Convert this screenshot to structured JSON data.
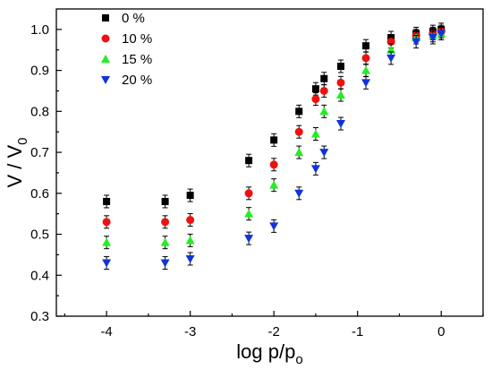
{
  "chart_data": {
    "type": "scatter",
    "xlabel_main": "log p/p",
    "xlabel_sub": "o",
    "ylabel_main": "V / V",
    "ylabel_sub": "0",
    "xlim": [
      -4.6,
      0.5
    ],
    "ylim": [
      0.3,
      1.05
    ],
    "x_ticks": [
      -4,
      -3,
      -2,
      -1,
      0
    ],
    "x_tick_labels": [
      "-4",
      "-3",
      "-2",
      "-1",
      "0"
    ],
    "y_ticks": [
      0.3,
      0.4,
      0.5,
      0.6,
      0.7,
      0.8,
      0.9,
      1.0
    ],
    "y_tick_labels": [
      "0.3",
      "0.4",
      "0.5",
      "0.6",
      "0.7",
      "0.8",
      "0.9",
      "1.0"
    ],
    "legend_position": "top-left",
    "series": [
      {
        "name": "0 %",
        "marker": "square",
        "color": "#000000",
        "x": [
          -4.0,
          -3.3,
          -3.0,
          -2.3,
          -2.0,
          -1.7,
          -1.5,
          -1.4,
          -1.2,
          -0.9,
          -0.6,
          -0.3,
          -0.1,
          0.0
        ],
        "y": [
          0.58,
          0.58,
          0.595,
          0.68,
          0.73,
          0.8,
          0.855,
          0.88,
          0.91,
          0.96,
          0.98,
          0.99,
          0.995,
          1.0
        ]
      },
      {
        "name": "10 %",
        "marker": "circle",
        "color": "#ee1111",
        "x": [
          -4.0,
          -3.3,
          -3.0,
          -2.3,
          -2.0,
          -1.7,
          -1.5,
          -1.4,
          -1.2,
          -0.9,
          -0.6,
          -0.3,
          -0.1,
          0.0
        ],
        "y": [
          0.53,
          0.53,
          0.535,
          0.6,
          0.67,
          0.75,
          0.83,
          0.85,
          0.87,
          0.93,
          0.97,
          0.985,
          0.99,
          0.995
        ]
      },
      {
        "name": "15 %",
        "marker": "triangle-up",
        "color": "#22ee22",
        "x": [
          -4.0,
          -3.3,
          -3.0,
          -2.3,
          -2.0,
          -1.7,
          -1.5,
          -1.4,
          -1.2,
          -0.9,
          -0.6,
          -0.3,
          -0.1,
          0.0
        ],
        "y": [
          0.48,
          0.48,
          0.485,
          0.55,
          0.62,
          0.7,
          0.745,
          0.8,
          0.84,
          0.9,
          0.95,
          0.98,
          0.985,
          0.99
        ]
      },
      {
        "name": "20 %",
        "marker": "triangle-down",
        "color": "#1133dd",
        "x": [
          -4.0,
          -3.3,
          -3.0,
          -2.3,
          -2.0,
          -1.7,
          -1.5,
          -1.4,
          -1.2,
          -0.9,
          -0.6,
          -0.3,
          -0.1,
          0.0
        ],
        "y": [
          0.43,
          0.43,
          0.44,
          0.49,
          0.52,
          0.6,
          0.66,
          0.7,
          0.77,
          0.87,
          0.93,
          0.97,
          0.98,
          0.99
        ]
      }
    ]
  }
}
